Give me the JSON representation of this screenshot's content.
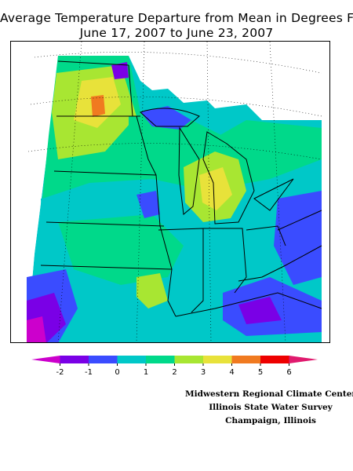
{
  "header": {
    "title": "Average Temperature Departure from Mean in Degrees F",
    "subtitle": "June 17, 2007 to June 23, 2007"
  },
  "legend": {
    "units": "Degrees F",
    "ticks": [
      "-2",
      "-1",
      "0",
      "1",
      "2",
      "3",
      "4",
      "5",
      "6"
    ],
    "bins": [
      {
        "range": "< -2",
        "color": "#cc00cc"
      },
      {
        "range": "-2 to -1",
        "color": "#7a00e6"
      },
      {
        "range": "-1 to 0",
        "color": "#3a4cff"
      },
      {
        "range": "0 to 1",
        "color": "#00c8c8"
      },
      {
        "range": "1 to 2",
        "color": "#00d98a"
      },
      {
        "range": "2 to 3",
        "color": "#a8e632"
      },
      {
        "range": "3 to 4",
        "color": "#e8e23a"
      },
      {
        "range": "4 to 5",
        "color": "#f07a20"
      },
      {
        "range": "5 to 6",
        "color": "#ee0000"
      },
      {
        "range": "> 6",
        "color": "#e01a6e"
      }
    ]
  },
  "credits": {
    "line1": "Midwestern Regional Climate Center",
    "line2": "Illinois State Water Survey",
    "line3": "Champaign, Illinois"
  }
}
